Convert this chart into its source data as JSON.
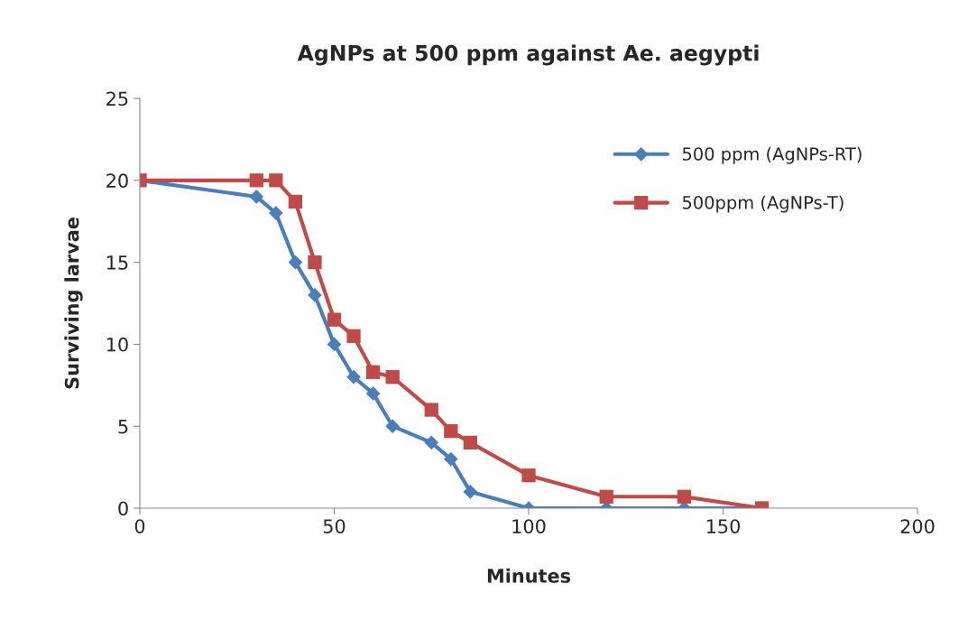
{
  "chart_data": {
    "type": "line",
    "title": "AgNPs at 500 ppm against Ae. aegypti",
    "xlabel": "Minutes",
    "ylabel": "Surviving larvae",
    "x": [
      0,
      30,
      35,
      40,
      45,
      50,
      55,
      60,
      65,
      75,
      80,
      85,
      100,
      120,
      140,
      160
    ],
    "series": [
      {
        "name": "500 ppm (AgNPs-RT)",
        "color": "#4a7ebb",
        "marker": "diamond",
        "values": [
          20,
          19,
          18,
          15,
          13,
          10,
          8,
          7,
          5,
          4,
          3,
          1,
          0,
          0,
          0,
          0
        ]
      },
      {
        "name": "500ppm (AgNPs-T)",
        "color": "#be4b48",
        "marker": "square",
        "values": [
          20,
          20,
          20,
          18.7,
          15,
          11.5,
          10.5,
          8.3,
          8,
          6,
          4.7,
          4,
          2,
          0.7,
          0.7,
          0
        ]
      }
    ],
    "xlim": [
      0,
      200
    ],
    "xticks": [
      0,
      50,
      100,
      150,
      200
    ],
    "ylim": [
      0,
      25
    ],
    "yticks": [
      0,
      5,
      10,
      15,
      20,
      25
    ],
    "grid": false,
    "legend": "top right",
    "line_style": "solid"
  }
}
